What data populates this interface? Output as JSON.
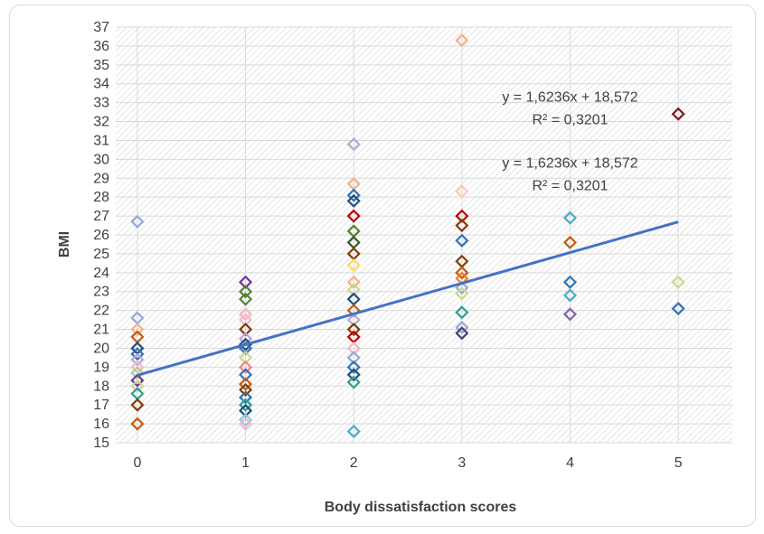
{
  "chart_data": {
    "type": "scatter",
    "title": "",
    "xlabel": "Body dissatisfaction scores",
    "ylabel": "BMI",
    "xlim": [
      -0.2,
      5.5
    ],
    "ylim": [
      15,
      37
    ],
    "x_ticks": [
      "0",
      "1",
      "2",
      "3",
      "4",
      "5"
    ],
    "y_ticks": [
      "15",
      "16",
      "17",
      "18",
      "19",
      "20",
      "21",
      "22",
      "23",
      "24",
      "25",
      "26",
      "27",
      "28",
      "29",
      "30",
      "31",
      "32",
      "33",
      "34",
      "35",
      "36",
      "37"
    ],
    "grid": true,
    "plot_background": "hatched",
    "trendline": {
      "slope": 1.6236,
      "intercept": 18.572,
      "x_range": [
        0,
        5
      ],
      "color": "#4472c4",
      "equation_label": "y = 1,6236x + 18,572",
      "r2_label": "R² = 0,3201"
    },
    "annotations": [
      {
        "text": "y = 1,6236x + 18,572",
        "x": 4.0,
        "y": 33.3
      },
      {
        "text": "R² = 0,3201",
        "x": 4.0,
        "y": 32.1
      },
      {
        "text": "y = 1,6236x + 18,572",
        "x": 4.0,
        "y": 29.8
      },
      {
        "text": "R² = 0,3201",
        "x": 4.0,
        "y": 28.6
      }
    ],
    "points": [
      {
        "x": 0,
        "y": 26.7,
        "color": "#8eaadb"
      },
      {
        "x": 0,
        "y": 21.6,
        "color": "#8eaadb"
      },
      {
        "x": 0,
        "y": 21.0,
        "color": "#f4b183"
      },
      {
        "x": 0,
        "y": 20.6,
        "color": "#c55a11"
      },
      {
        "x": 0,
        "y": 20.0,
        "color": "#1f4e79"
      },
      {
        "x": 0,
        "y": 19.7,
        "color": "#2e75b6"
      },
      {
        "x": 0,
        "y": 19.4,
        "color": "#b4a7d6"
      },
      {
        "x": 0,
        "y": 19.0,
        "color": "#f4b6c2"
      },
      {
        "x": 0,
        "y": 18.7,
        "color": "#a9d18e"
      },
      {
        "x": 0,
        "y": 18.3,
        "color": "#7030a0"
      },
      {
        "x": 0,
        "y": 18.0,
        "color": "#c9d98c"
      },
      {
        "x": 0,
        "y": 17.6,
        "color": "#2f9e8f"
      },
      {
        "x": 0,
        "y": 17.0,
        "color": "#843c0c"
      },
      {
        "x": 0,
        "y": 16.0,
        "color": "#c55a11"
      },
      {
        "x": 1,
        "y": 23.5,
        "color": "#7030a0"
      },
      {
        "x": 1,
        "y": 23.0,
        "color": "#548235"
      },
      {
        "x": 1,
        "y": 22.6,
        "color": "#548235"
      },
      {
        "x": 1,
        "y": 21.8,
        "color": "#f4b6c2"
      },
      {
        "x": 1,
        "y": 21.5,
        "color": "#f4b6c2"
      },
      {
        "x": 1,
        "y": 21.0,
        "color": "#843c0c"
      },
      {
        "x": 1,
        "y": 20.5,
        "color": "#b4a7d6"
      },
      {
        "x": 1,
        "y": 20.2,
        "color": "#1f4e79"
      },
      {
        "x": 1,
        "y": 20.0,
        "color": "#2e75b6"
      },
      {
        "x": 1,
        "y": 19.5,
        "color": "#c9d98c"
      },
      {
        "x": 1,
        "y": 19.0,
        "color": "#ff7c80"
      },
      {
        "x": 1,
        "y": 18.6,
        "color": "#2e75b6"
      },
      {
        "x": 1,
        "y": 18.1,
        "color": "#c55a11"
      },
      {
        "x": 1,
        "y": 17.8,
        "color": "#843c0c"
      },
      {
        "x": 1,
        "y": 17.4,
        "color": "#2e75b6"
      },
      {
        "x": 1,
        "y": 17.0,
        "color": "#2f9e8f"
      },
      {
        "x": 1,
        "y": 16.7,
        "color": "#1f4e79"
      },
      {
        "x": 1,
        "y": 16.2,
        "color": "#8ecae6"
      },
      {
        "x": 1,
        "y": 16.0,
        "color": "#f4b6c2"
      },
      {
        "x": 2,
        "y": 30.8,
        "color": "#b4a7d6"
      },
      {
        "x": 2,
        "y": 28.7,
        "color": "#f4b183"
      },
      {
        "x": 2,
        "y": 28.1,
        "color": "#2e75b6"
      },
      {
        "x": 2,
        "y": 27.8,
        "color": "#1f4e79"
      },
      {
        "x": 2,
        "y": 27.0,
        "color": "#c00000"
      },
      {
        "x": 2,
        "y": 26.2,
        "color": "#548235"
      },
      {
        "x": 2,
        "y": 25.6,
        "color": "#375623"
      },
      {
        "x": 2,
        "y": 25.0,
        "color": "#843c0c"
      },
      {
        "x": 2,
        "y": 24.4,
        "color": "#ffd966"
      },
      {
        "x": 2,
        "y": 23.5,
        "color": "#f4b183"
      },
      {
        "x": 2,
        "y": 23.1,
        "color": "#c9d98c"
      },
      {
        "x": 2,
        "y": 22.6,
        "color": "#1f4e79"
      },
      {
        "x": 2,
        "y": 22.0,
        "color": "#c55a11"
      },
      {
        "x": 2,
        "y": 21.5,
        "color": "#b4a7d6"
      },
      {
        "x": 2,
        "y": 21.0,
        "color": "#843c0c"
      },
      {
        "x": 2,
        "y": 20.6,
        "color": "#c00000"
      },
      {
        "x": 2,
        "y": 20.0,
        "color": "#f4b6c2"
      },
      {
        "x": 2,
        "y": 19.5,
        "color": "#8eaadb"
      },
      {
        "x": 2,
        "y": 19.0,
        "color": "#2e75b6"
      },
      {
        "x": 2,
        "y": 18.6,
        "color": "#1f4e79"
      },
      {
        "x": 2,
        "y": 18.2,
        "color": "#2f9e8f"
      },
      {
        "x": 2,
        "y": 15.6,
        "color": "#4bacc6"
      },
      {
        "x": 3,
        "y": 36.3,
        "color": "#f4b183"
      },
      {
        "x": 3,
        "y": 28.3,
        "color": "#f8cbad"
      },
      {
        "x": 3,
        "y": 27.0,
        "color": "#c00000"
      },
      {
        "x": 3,
        "y": 26.5,
        "color": "#843c0c"
      },
      {
        "x": 3,
        "y": 25.7,
        "color": "#2e75b6"
      },
      {
        "x": 3,
        "y": 24.6,
        "color": "#843c0c"
      },
      {
        "x": 3,
        "y": 24.0,
        "color": "#c55a11"
      },
      {
        "x": 3,
        "y": 23.7,
        "color": "#ed7d31"
      },
      {
        "x": 3,
        "y": 23.2,
        "color": "#8eaadb"
      },
      {
        "x": 3,
        "y": 22.9,
        "color": "#c9d98c"
      },
      {
        "x": 3,
        "y": 21.9,
        "color": "#2f9e8f"
      },
      {
        "x": 3,
        "y": 21.1,
        "color": "#8eaadb"
      },
      {
        "x": 3,
        "y": 20.8,
        "color": "#4d3b6e"
      },
      {
        "x": 4,
        "y": 26.9,
        "color": "#4bacc6"
      },
      {
        "x": 4,
        "y": 25.6,
        "color": "#c55a11"
      },
      {
        "x": 4,
        "y": 23.5,
        "color": "#2e75b6"
      },
      {
        "x": 4,
        "y": 22.8,
        "color": "#4bacc6"
      },
      {
        "x": 4,
        "y": 21.8,
        "color": "#8064a2"
      },
      {
        "x": 5,
        "y": 32.4,
        "color": "#7b1f1f"
      },
      {
        "x": 5,
        "y": 23.5,
        "color": "#c9d98c"
      },
      {
        "x": 5,
        "y": 22.1,
        "color": "#2e75b6"
      }
    ]
  }
}
